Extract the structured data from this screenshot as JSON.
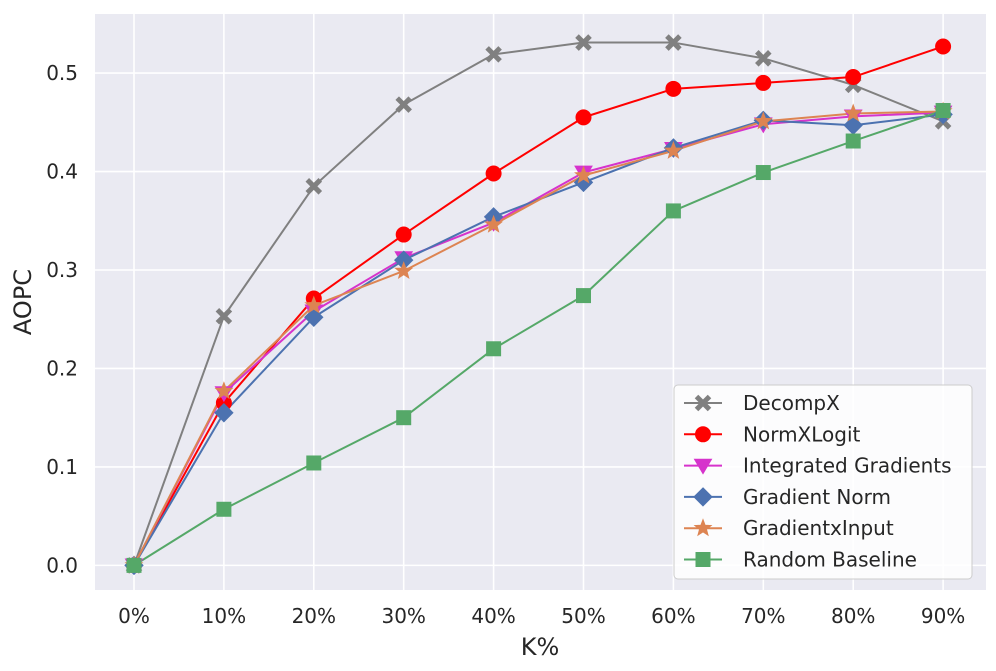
{
  "chart_data": {
    "type": "line",
    "title": "",
    "xlabel": "K%",
    "ylabel": "AOPC",
    "categories": [
      "0%",
      "10%",
      "20%",
      "30%",
      "40%",
      "50%",
      "60%",
      "70%",
      "80%",
      "90%"
    ],
    "ylim": [
      -0.025,
      0.56
    ],
    "yticks": [
      0.0,
      0.1,
      0.2,
      0.3,
      0.4,
      0.5
    ],
    "ytick_labels": [
      "0.0",
      "0.1",
      "0.2",
      "0.3",
      "0.4",
      "0.5"
    ],
    "grid": true,
    "legend_position": "lower-right",
    "series": [
      {
        "name": "DecompX",
        "color": "#808080",
        "marker": "x",
        "values": [
          0.0,
          0.253,
          0.385,
          0.468,
          0.519,
          0.531,
          0.531,
          0.515,
          0.488,
          0.451
        ]
      },
      {
        "name": "NormXLogit",
        "color": "#ff0000",
        "marker": "circle",
        "values": [
          0.0,
          0.165,
          0.271,
          0.336,
          0.398,
          0.455,
          0.484,
          0.49,
          0.496,
          0.527
        ]
      },
      {
        "name": "Integrated Gradients",
        "color": "#d633cc",
        "marker": "triangle-down",
        "values": [
          0.0,
          0.175,
          0.258,
          0.312,
          0.348,
          0.399,
          0.423,
          0.448,
          0.456,
          0.46
        ]
      },
      {
        "name": "Gradient Norm",
        "color": "#4c72b0",
        "marker": "diamond",
        "values": [
          0.0,
          0.155,
          0.252,
          0.31,
          0.354,
          0.389,
          0.424,
          0.452,
          0.447,
          0.458
        ]
      },
      {
        "name": "GradientxInput",
        "color": "#dd8452",
        "marker": "star",
        "values": [
          0.0,
          0.177,
          0.264,
          0.299,
          0.346,
          0.396,
          0.421,
          0.451,
          0.459,
          0.461
        ]
      },
      {
        "name": "Random Baseline",
        "color": "#55a868",
        "marker": "square",
        "values": [
          0.0,
          0.057,
          0.104,
          0.15,
          0.22,
          0.274,
          0.36,
          0.399,
          0.431,
          0.462
        ]
      }
    ]
  }
}
